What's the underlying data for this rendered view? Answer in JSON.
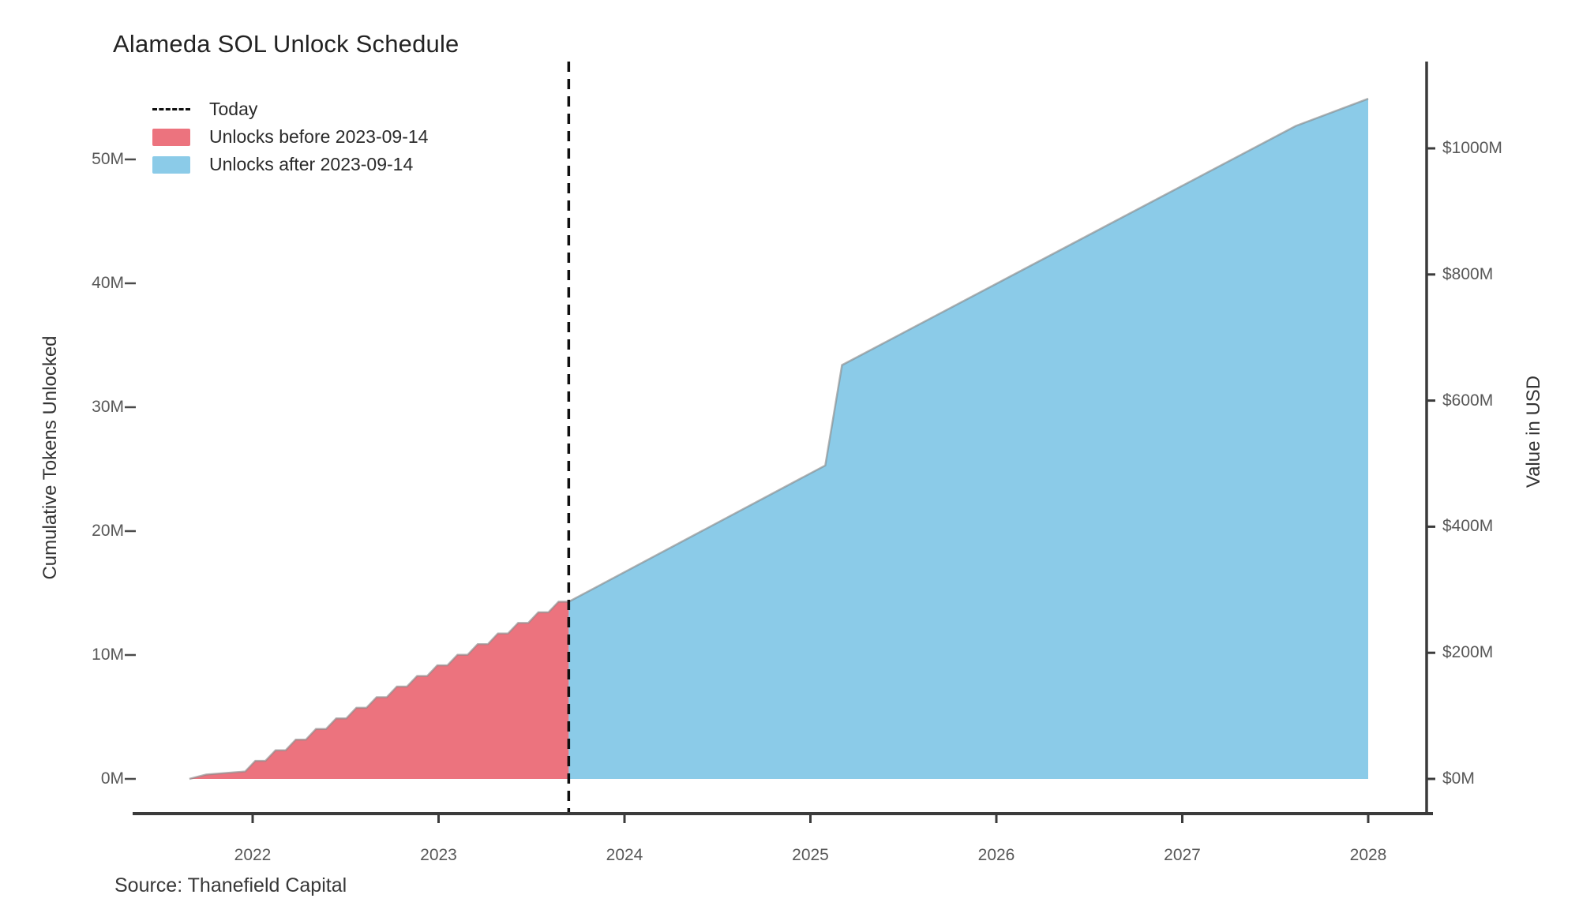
{
  "chart_data": {
    "type": "area",
    "title": "Alameda SOL Unlock Schedule",
    "source": "Source: Thanefield Capital",
    "today_line": {
      "label": "Today",
      "date": "2023-09-14",
      "x_year": 2023.7
    },
    "x_axis": {
      "tick_labels": [
        "2022",
        "2023",
        "2024",
        "2025",
        "2026",
        "2027",
        "2028"
      ],
      "tick_values": [
        2022,
        2023,
        2024,
        2025,
        2026,
        2027,
        2028
      ],
      "range": [
        2021.35,
        2028.35
      ]
    },
    "y_left": {
      "label": "Cumulative Tokens Unlocked",
      "tick_labels": [
        "0M",
        "10M",
        "20M",
        "30M",
        "40M",
        "50M"
      ],
      "tick_values": [
        0,
        10,
        20,
        30,
        40,
        50
      ],
      "range": [
        0,
        58
      ]
    },
    "y_right": {
      "label": "Value in USD",
      "tick_labels": [
        "$0M",
        "$200M",
        "$400M",
        "$600M",
        "$800M",
        "$1000M"
      ],
      "tick_values": [
        0,
        200,
        400,
        600,
        800,
        1000
      ],
      "range": [
        0,
        1160
      ]
    },
    "legend": [
      {
        "label": "Today",
        "swatch": "dashed-line",
        "color": "#0f0f0f"
      },
      {
        "label": "Unlocks before 2023-09-14",
        "swatch": "area",
        "color": "#EC737E"
      },
      {
        "label": "Unlocks after 2023-09-14",
        "swatch": "area",
        "color": "#8BCBE8"
      }
    ],
    "series": [
      {
        "name": "Unlocks before 2023-09-14",
        "color": "#EC737E",
        "edge_style": "stepped",
        "points_year_tokensM": [
          [
            2021.66,
            0
          ],
          [
            2021.75,
            0.35
          ],
          [
            2021.96,
            0.6
          ],
          [
            2023.7,
            14.3
          ]
        ]
      },
      {
        "name": "Unlocks after 2023-09-14",
        "color": "#8BCBE8",
        "edge_style": "linear",
        "points_year_tokensM": [
          [
            2023.7,
            14.3
          ],
          [
            2025.08,
            25.3
          ],
          [
            2025.17,
            33.4
          ],
          [
            2027.61,
            52.7
          ],
          [
            2028.0,
            54.9
          ]
        ]
      }
    ],
    "colors": {
      "axis": "#3b3b3b",
      "tick_text": "#585858",
      "area_edge": "#8a8a8a",
      "background": "#ffffff"
    }
  }
}
